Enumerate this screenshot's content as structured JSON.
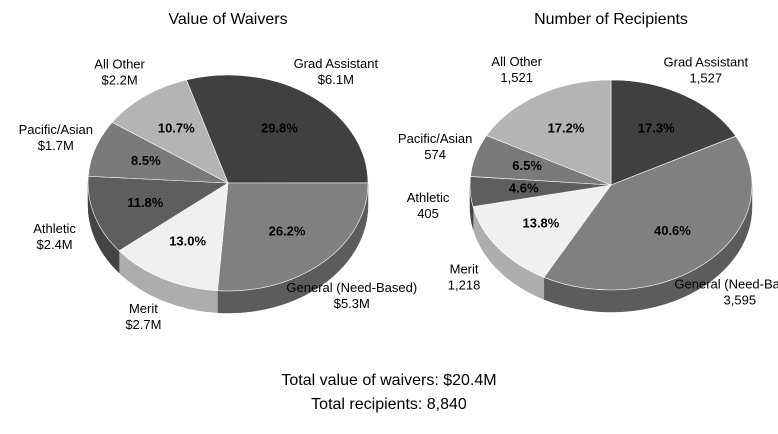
{
  "chart_data": [
    {
      "type": "pie",
      "title": "Value of Waivers",
      "categories": [
        "Grad Assistant",
        "General (Need-Based)",
        "Merit",
        "Athletic",
        "Pacific/Asian",
        "All Other"
      ],
      "values": [
        29.8,
        26.2,
        13.0,
        11.8,
        8.5,
        10.7
      ],
      "value_labels": [
        "29.8%",
        "26.2%",
        "13.0%",
        "11.8%",
        "8.5%",
        "10.7%"
      ],
      "amounts": [
        6100000,
        5300000,
        2700000,
        2400000,
        1700000,
        2200000
      ],
      "amount_labels": [
        "$6.1M",
        "$5.3M",
        "$2.7M",
        "$2.4M",
        "$1.7M",
        "$2.2M"
      ],
      "colors": [
        "#404040",
        "#808080",
        "#f0f0f0",
        "#5e5e5e",
        "#7a7a7a",
        "#b4b4b4"
      ]
    },
    {
      "type": "pie",
      "title": "Number of Recipients",
      "categories": [
        "Grad Assistant",
        "General (Need-Based)",
        "Merit",
        "Athletic",
        "Pacific/Asian",
        "All Other"
      ],
      "values": [
        17.3,
        40.6,
        13.8,
        4.6,
        6.5,
        17.2
      ],
      "value_labels": [
        "17.3%",
        "40.6%",
        "13.8%",
        "4.6%",
        "6.5%",
        "17.2%"
      ],
      "amounts": [
        1527,
        3595,
        1218,
        405,
        574,
        1521
      ],
      "amount_labels": [
        "1,527",
        "3,595",
        "1,218",
        "405",
        "574",
        "1,521"
      ],
      "colors": [
        "#404040",
        "#808080",
        "#f0f0f0",
        "#5e5e5e",
        "#7a7a7a",
        "#b4b4b4"
      ]
    }
  ],
  "footer": [
    "Total value of waivers: $20.4M",
    "Total recipients: 8,840"
  ]
}
